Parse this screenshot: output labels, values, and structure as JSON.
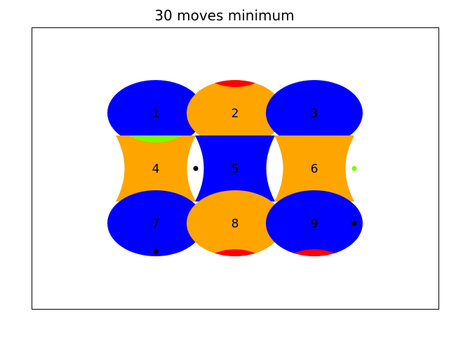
{
  "title": "30 moves minimum",
  "colors": {
    "blue": "#0000ff",
    "orange": "#ffa500",
    "red": "#ff0000",
    "green": "#7cfc00",
    "black": "#000000"
  },
  "grid": {
    "rows": 3,
    "cols": 3
  },
  "pieces": [
    {
      "label": "1",
      "row": 0,
      "col": 0,
      "color": "blue",
      "shape": "convex",
      "cap_top": "blue",
      "cap_bottom": "green",
      "marker": null
    },
    {
      "label": "2",
      "row": 0,
      "col": 1,
      "color": "orange",
      "shape": "convex",
      "cap_top": "red",
      "cap_bottom": "orange",
      "marker": "bottom"
    },
    {
      "label": "3",
      "row": 0,
      "col": 2,
      "color": "blue",
      "shape": "convex",
      "cap_top": "blue",
      "cap_bottom": "blue",
      "marker": "bottom"
    },
    {
      "label": "4",
      "row": 1,
      "col": 0,
      "color": "orange",
      "shape": "concave",
      "cap_top": "green",
      "cap_bottom": "orange",
      "marker": "right"
    },
    {
      "label": "5",
      "row": 1,
      "col": 1,
      "color": "blue",
      "shape": "concave",
      "cap_top": "blue",
      "cap_bottom": "blue",
      "marker": null
    },
    {
      "label": "6",
      "row": 1,
      "col": 2,
      "color": "orange",
      "shape": "concave",
      "cap_top": "orange",
      "cap_bottom": "red",
      "marker": "right-green"
    },
    {
      "label": "7",
      "row": 2,
      "col": 0,
      "color": "blue",
      "shape": "convex",
      "cap_top": "blue",
      "cap_bottom": "blue",
      "marker": "bottom"
    },
    {
      "label": "8",
      "row": 2,
      "col": 1,
      "color": "orange",
      "shape": "convex",
      "cap_top": "orange",
      "cap_bottom": "red",
      "marker": null
    },
    {
      "label": "9",
      "row": 2,
      "col": 2,
      "color": "blue",
      "shape": "convex",
      "cap_top": "blue",
      "cap_bottom": "red",
      "marker": "right"
    }
  ]
}
